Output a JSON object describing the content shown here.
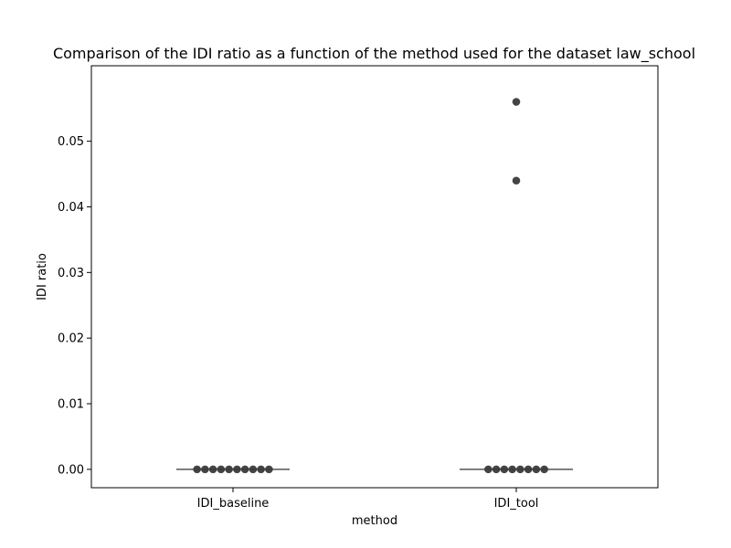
{
  "chart_data": {
    "type": "scatter",
    "title": "Comparison of the IDI ratio as a function of the method used for the dataset law_school",
    "xlabel": "method",
    "ylabel": "IDI ratio",
    "categories": [
      "IDI_baseline",
      "IDI_tool"
    ],
    "yticks": [
      "0.00",
      "0.01",
      "0.02",
      "0.03",
      "0.04",
      "0.05"
    ],
    "ylim": [
      -0.0028,
      0.0615
    ],
    "grid": false,
    "point_color": "#3a3a3a",
    "median_color": "#555555",
    "series": [
      {
        "category": "IDI_baseline",
        "values": [
          0,
          0,
          0,
          0,
          0,
          0,
          0,
          0,
          0,
          0
        ],
        "median": 0
      },
      {
        "category": "IDI_tool",
        "values": [
          0,
          0,
          0,
          0,
          0,
          0,
          0,
          0,
          0.044,
          0.056
        ],
        "median": 0
      }
    ]
  }
}
